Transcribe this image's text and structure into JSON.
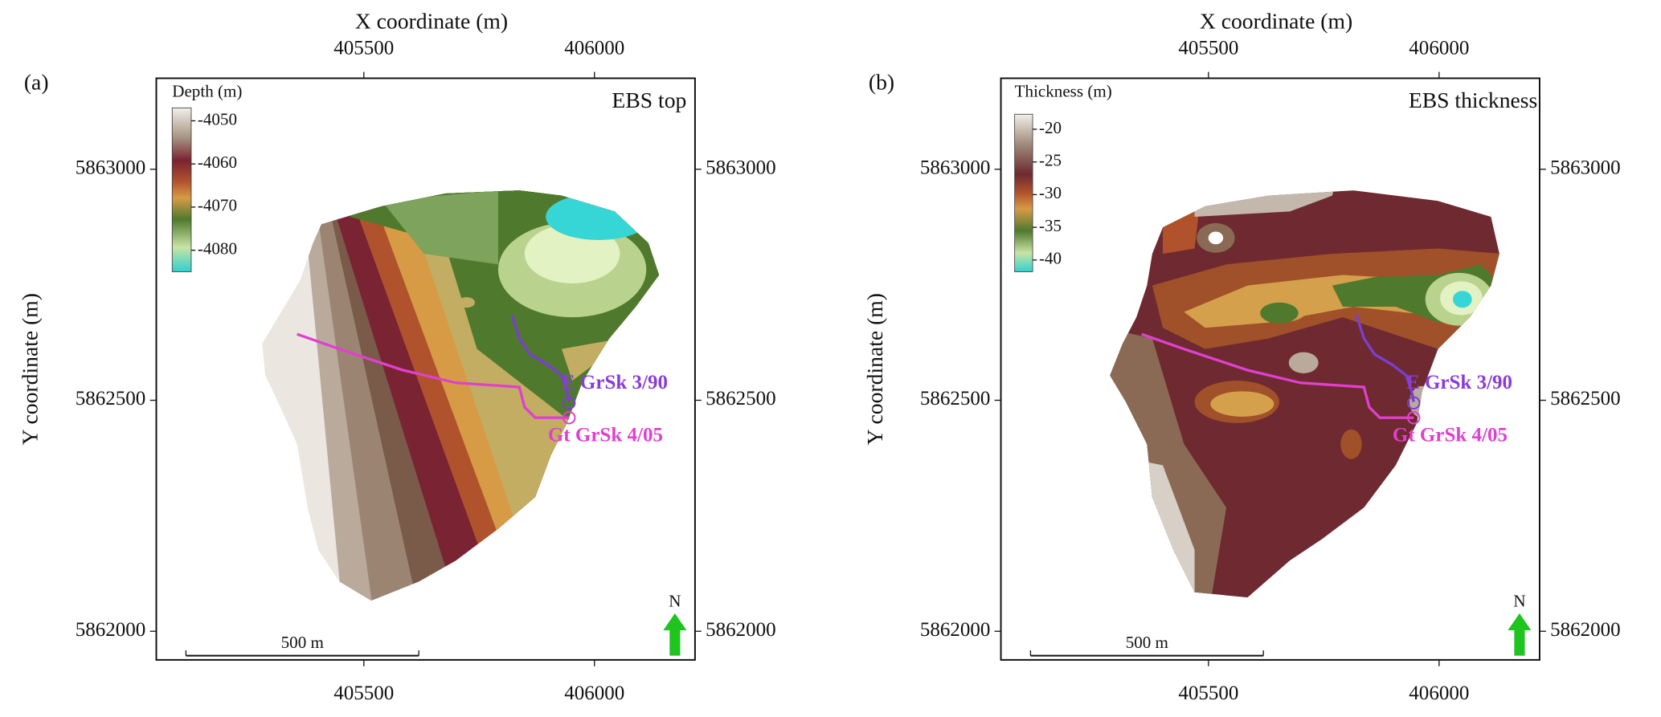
{
  "panels": [
    {
      "label": "(a)",
      "title": "EBS top",
      "x_label": "X coordinate (m)",
      "y_label": "Y coordinate (m)",
      "xlim": [
        405050,
        406218
      ],
      "xticks": [
        405500,
        406000
      ],
      "ylim": [
        5861938,
        5863197
      ],
      "yticks": [
        5862000,
        5862500,
        5863000
      ],
      "colorbar": {
        "title": "Depth (m)",
        "lim": [
          -4047,
          -4085
        ],
        "ticks": [
          -4050,
          -4060,
          -4070,
          -4080
        ]
      },
      "wells": [
        "E GrSk 3/90",
        "Gt GrSk 4/05"
      ],
      "scale_bar": "500 m",
      "north": "N"
    },
    {
      "label": "(b)",
      "title": "EBS thickness",
      "x_label": "X coordinate (m)",
      "y_label": "Y coordinate (m)",
      "xlim": [
        405050,
        406218
      ],
      "xticks": [
        405500,
        406000
      ],
      "ylim": [
        5861938,
        5863197
      ],
      "yticks": [
        5862000,
        5862500,
        5863000
      ],
      "colorbar": {
        "title": "Thickness (m)",
        "lim": [
          -17.7,
          -41.8
        ],
        "ticks": [
          -20,
          -25,
          -30,
          -35,
          -40
        ]
      },
      "wells": [
        "E GrSk 3/90",
        "Gt GrSk 4/05"
      ],
      "scale_bar": "500 m",
      "north": "N"
    }
  ]
}
